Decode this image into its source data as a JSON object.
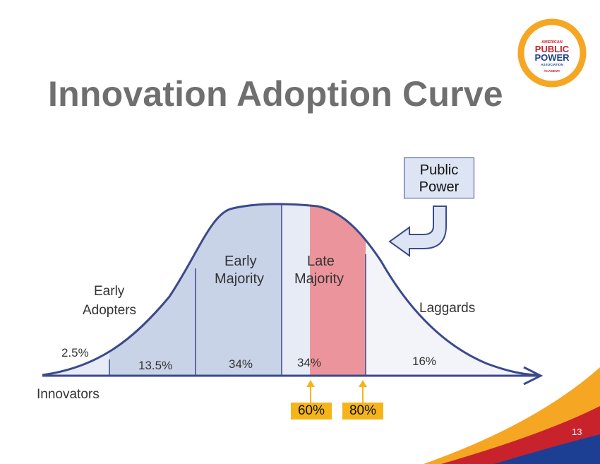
{
  "slide": {
    "title": "Innovation Adoption Curve",
    "slide_number": "13"
  },
  "logo": {
    "line1": "AMERICAN",
    "line2": "PUBLIC",
    "line3": "POWER",
    "line4": "ASSOCIATION",
    "line5": "ACADEMY"
  },
  "callout": {
    "line1": "Public",
    "line2": "Power"
  },
  "curve": {
    "segments": [
      {
        "name": "Innovators",
        "percent": "2.5%"
      },
      {
        "name_line1": "Early",
        "name_line2": "Adopters",
        "percent": "13.5%"
      },
      {
        "name_line1": "Early",
        "name_line2": "Majority",
        "percent": "34%"
      },
      {
        "name_line1": "Late",
        "name_line2": "Majority",
        "percent": "34%"
      },
      {
        "name": "Laggards",
        "percent": "16%"
      }
    ],
    "markers": [
      "60%",
      "80%"
    ]
  },
  "colors": {
    "title": "#6f6f6f",
    "curve_stroke": "#3b4a8c",
    "fill_blue": "#c9d3e8",
    "fill_light": "#e6ebf5",
    "fill_red": "#ec949b",
    "marker": "#f5b51a",
    "accent_red": "#c8232c",
    "accent_orange": "#f5a623"
  }
}
